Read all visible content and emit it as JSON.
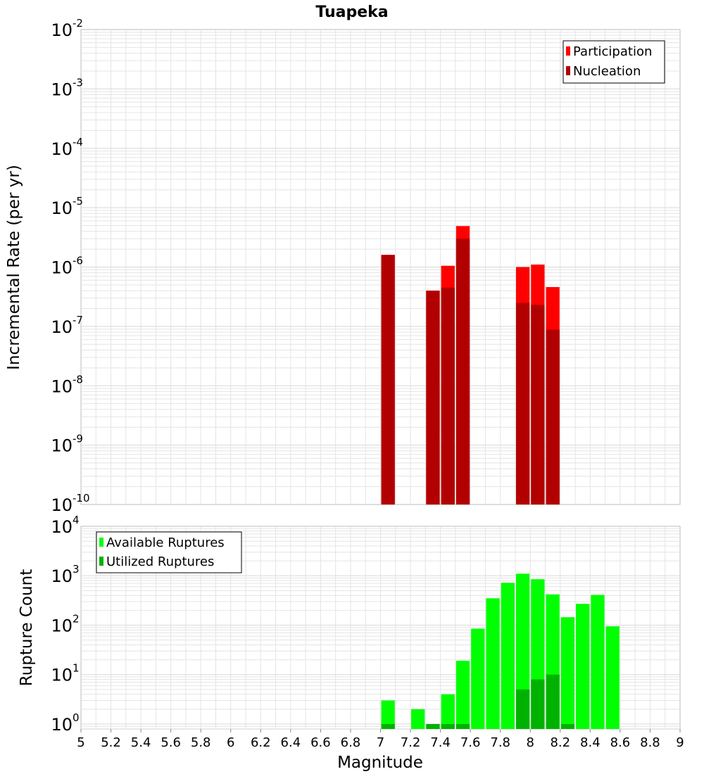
{
  "colors": {
    "participation": "#ff0000",
    "nucleation": "#b20000",
    "available": "#00ff00",
    "utilized": "#00b200",
    "grid": "#e4e4e4",
    "frame": "#bbbbbb"
  },
  "chart_data": [
    {
      "type": "bar",
      "title": "Tuapeka",
      "xlabel": "",
      "ylabel": "Incremental Rate (per yr)",
      "yscale": "log",
      "ylim_exponents": [
        -10,
        -2
      ],
      "y_tick_exponents": [
        "-10",
        "-9",
        "-8",
        "-7",
        "-6",
        "-5",
        "-4",
        "-3",
        "-2"
      ],
      "xlim": [
        5,
        9
      ],
      "bar_width": 0.1,
      "legend": {
        "position": "top-right",
        "entries": [
          "Participation",
          "Nucleation"
        ]
      },
      "series": [
        {
          "name": "Participation",
          "color": "#ff0000",
          "points": [
            {
              "x": 7.05,
              "y": 1.6e-06
            },
            {
              "x": 7.35,
              "y": 4e-07
            },
            {
              "x": 7.45,
              "y": 1.05e-06
            },
            {
              "x": 7.55,
              "y": 4.9e-06
            },
            {
              "x": 7.95,
              "y": 1e-06
            },
            {
              "x": 8.05,
              "y": 1.1e-06
            },
            {
              "x": 8.15,
              "y": 4.6e-07
            }
          ]
        },
        {
          "name": "Nucleation",
          "color": "#b20000",
          "points": [
            {
              "x": 7.05,
              "y": 1.6e-06
            },
            {
              "x": 7.35,
              "y": 4e-07
            },
            {
              "x": 7.45,
              "y": 4.5e-07
            },
            {
              "x": 7.55,
              "y": 3e-06
            },
            {
              "x": 7.95,
              "y": 2.5e-07
            },
            {
              "x": 8.05,
              "y": 2.3e-07
            },
            {
              "x": 8.15,
              "y": 8.8e-08
            }
          ]
        }
      ]
    },
    {
      "type": "bar",
      "title": "",
      "xlabel": "Magnitude",
      "ylabel": "Rupture Count",
      "yscale": "log",
      "ylim_exponents": [
        -0.1,
        4
      ],
      "y_tick_exponents": [
        "0",
        "1",
        "2",
        "3",
        "4"
      ],
      "xlim": [
        5,
        9
      ],
      "x_ticks": [
        "5",
        "5.2",
        "5.4",
        "5.6",
        "5.8",
        "6",
        "6.2",
        "6.4",
        "6.6",
        "6.8",
        "7",
        "7.2",
        "7.4",
        "7.6",
        "7.8",
        "8",
        "8.2",
        "8.4",
        "8.6",
        "8.8",
        "9"
      ],
      "bar_width": 0.1,
      "legend": {
        "position": "top-left",
        "entries": [
          "Available Ruptures",
          "Utilized Ruptures"
        ]
      },
      "series": [
        {
          "name": "Available Ruptures",
          "color": "#00ff00",
          "points": [
            {
              "x": 7.05,
              "y": 3
            },
            {
              "x": 7.25,
              "y": 2
            },
            {
              "x": 7.35,
              "y": 1
            },
            {
              "x": 7.45,
              "y": 4
            },
            {
              "x": 7.55,
              "y": 19
            },
            {
              "x": 7.65,
              "y": 85
            },
            {
              "x": 7.75,
              "y": 350
            },
            {
              "x": 7.85,
              "y": 720
            },
            {
              "x": 7.95,
              "y": 1100
            },
            {
              "x": 8.05,
              "y": 850
            },
            {
              "x": 8.15,
              "y": 420
            },
            {
              "x": 8.25,
              "y": 145
            },
            {
              "x": 8.35,
              "y": 270
            },
            {
              "x": 8.45,
              "y": 410
            },
            {
              "x": 8.55,
              "y": 95
            }
          ]
        },
        {
          "name": "Utilized Ruptures",
          "color": "#00b200",
          "points": [
            {
              "x": 7.05,
              "y": 1
            },
            {
              "x": 7.35,
              "y": 1
            },
            {
              "x": 7.45,
              "y": 1
            },
            {
              "x": 7.55,
              "y": 1
            },
            {
              "x": 7.95,
              "y": 5
            },
            {
              "x": 8.05,
              "y": 8
            },
            {
              "x": 8.15,
              "y": 10
            },
            {
              "x": 8.25,
              "y": 1
            }
          ]
        }
      ]
    }
  ]
}
